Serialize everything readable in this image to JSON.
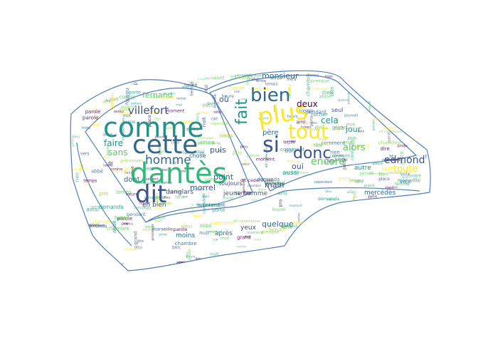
{
  "wordcloud": {
    "outline_color": "#4f7fb8",
    "palette": [
      "#440154",
      "#3b528b",
      "#21918c",
      "#5ec962",
      "#fde725",
      "#31688e",
      "#35b779",
      "#90d743"
    ],
    "words": [
      {
        "id": "dantes",
        "text": "dantès",
        "color": "#35b779"
      },
      {
        "id": "comme",
        "text": "comme",
        "color": "#21918c"
      },
      {
        "id": "cette",
        "text": "cette",
        "color": "#31688e"
      },
      {
        "id": "dit",
        "text": "dit",
        "color": "#3b528b"
      },
      {
        "id": "plus",
        "text": "plus",
        "color": "#fde725"
      },
      {
        "id": "tout",
        "text": "tout",
        "color": "#fde725"
      },
      {
        "id": "si",
        "text": "si",
        "color": "#3b528b"
      },
      {
        "id": "bien",
        "text": "bien",
        "color": "#31688e"
      },
      {
        "id": "fait",
        "text": "fait",
        "color": "#21918c"
      },
      {
        "id": "donc",
        "text": "donc",
        "color": "#3b528b"
      },
      {
        "id": "villefort",
        "text": "villefort",
        "color": "#3b528b"
      },
      {
        "id": "homme",
        "text": "homme",
        "color": "#31688e"
      },
      {
        "id": "faire",
        "text": "faire",
        "color": "#21918c"
      },
      {
        "id": "sans",
        "text": "sans",
        "color": "#5ec962"
      },
      {
        "id": "fernand",
        "text": "fernand",
        "color": "#5ec962"
      },
      {
        "id": "edmond",
        "text": "edmond",
        "color": "#3b528b"
      },
      {
        "id": "alors",
        "text": "alors",
        "color": "#5ec962"
      },
      {
        "id": "encore",
        "text": "encore",
        "color": "#5ec962"
      },
      {
        "id": "cela",
        "text": "cela",
        "color": "#21918c"
      },
      {
        "id": "deux",
        "text": "deux",
        "color": "#440154"
      },
      {
        "id": "monsieur",
        "text": "monsieur",
        "color": "#31688e"
      },
      {
        "id": "toute",
        "text": "toute",
        "color": "#fde725"
      },
      {
        "id": "jour",
        "text": "jour",
        "color": "#21918c"
      },
      {
        "id": "pere",
        "text": "père",
        "color": "#31688e"
      },
      {
        "id": "ou",
        "text": "où",
        "color": "#3b528b"
      },
      {
        "id": "puis",
        "text": "puis",
        "color": "#3b528b"
      },
      {
        "id": "point",
        "text": "point",
        "color": "#31688e"
      },
      {
        "id": "morrel",
        "text": "morrel",
        "color": "#3b528b"
      },
      {
        "id": "danglars",
        "text": "danglars",
        "color": "#3b528b"
      },
      {
        "id": "main",
        "text": "main",
        "color": "#3b528b"
      },
      {
        "id": "oui",
        "text": "oui",
        "color": "#3b528b"
      },
      {
        "id": "quelque",
        "text": "quelque",
        "color": "#31688e"
      },
      {
        "id": "mercedes",
        "text": "mercédès",
        "color": "#31688e"
      },
      {
        "id": "dont",
        "text": "dont",
        "color": "#31688e"
      },
      {
        "id": "eh_bien",
        "text": "eh bien",
        "color": "#3b528b"
      },
      {
        "id": "apres",
        "text": "après",
        "color": "#31688e"
      },
      {
        "id": "yeux",
        "text": "yeux",
        "color": "#3b528b"
      },
      {
        "id": "moins",
        "text": "moins",
        "color": "#31688e"
      },
      {
        "id": "jeune_homme",
        "text": "jeune homme",
        "color": "#31688e"
      },
      {
        "id": "toujours",
        "text": "toujours",
        "color": "#3b528b"
      },
      {
        "id": "aussi",
        "text": "aussi",
        "color": "#21918c"
      },
      {
        "id": "autre",
        "text": "autre",
        "color": "#21918c"
      },
      {
        "id": "chose",
        "text": "chose",
        "color": "#31688e"
      },
      {
        "id": "seul",
        "text": "seul",
        "color": "#3b528b"
      },
      {
        "id": "maintenant",
        "text": "maintenant",
        "color": "#31688e"
      },
      {
        "id": "chambre",
        "text": "chambre",
        "color": "#31688e"
      },
      {
        "id": "lequel",
        "text": "lequel",
        "color": "#31688e"
      },
      {
        "id": "parole",
        "text": "parole",
        "color": "#31688e"
      },
      {
        "id": "celui",
        "text": "celui",
        "color": "#21918c"
      },
      {
        "id": "tete",
        "text": "tête",
        "color": "#31688e"
      },
      {
        "id": "ami",
        "text": "ami",
        "color": "#31688e"
      },
      {
        "id": "faria",
        "text": "faria",
        "color": "#31688e"
      },
      {
        "id": "demanda",
        "text": "demanda",
        "color": "#31688e"
      },
      {
        "id": "cependant",
        "text": "cependant",
        "color": "#31688e"
      },
      {
        "id": "dieu",
        "text": "dieu",
        "color": "#31688e"
      },
      {
        "id": "pouvait",
        "text": "pouvait",
        "color": "#31688e"
      },
      {
        "id": "grand",
        "text": "grand",
        "color": "#3b528b"
      },
      {
        "id": "assez",
        "text": "assez",
        "color": "#31688e"
      },
      {
        "id": "place",
        "text": "place",
        "color": "#31688e"
      },
      {
        "id": "quand",
        "text": "quand",
        "color": "#31688e"
      },
      {
        "id": "jamais",
        "text": "jamais",
        "color": "#31688e"
      },
      {
        "id": "temps",
        "text": "temps",
        "color": "#31688e"
      },
      {
        "id": "porte",
        "text": "porte",
        "color": "#31688e"
      },
      {
        "id": "pris",
        "text": "pris",
        "color": "#31688e"
      },
      {
        "id": "vers",
        "text": "vers",
        "color": "#31688e"
      },
      {
        "id": "abbe",
        "text": "abbé",
        "color": "#31688e"
      },
      {
        "id": "pendant",
        "text": "pendant",
        "color": "#31688e"
      },
      {
        "id": "prisonnier",
        "text": "prisonnier",
        "color": "#31688e"
      },
      {
        "id": "rien",
        "text": "rien",
        "color": "#5ec962"
      },
      {
        "id": "peu",
        "text": "peu",
        "color": "#3b528b"
      },
      {
        "id": "trois",
        "text": "trois",
        "color": "#21918c"
      },
      {
        "id": "ainsi",
        "text": "ainsi",
        "color": "#21918c"
      },
      {
        "id": "contre",
        "text": "contre",
        "color": "#31688e"
      },
      {
        "id": "caderousse",
        "text": "dit caderousse",
        "color": "#31688e"
      },
      {
        "id": "jusqu",
        "text": "jusqu",
        "color": "#31688e"
      },
      {
        "id": "presque",
        "text": "presque",
        "color": "#31688e"
      },
      {
        "id": "femme",
        "text": "femme",
        "color": "#31688e"
      },
      {
        "id": "rocher",
        "text": "rocher",
        "color": "#31688e"
      },
      {
        "id": "marseille",
        "text": "marseille",
        "color": "#31688e"
      },
      {
        "id": "fit",
        "text": "fit",
        "color": "#31688e"
      },
      {
        "id": "voix",
        "text": "voix",
        "color": "#31688e"
      },
      {
        "id": "heure",
        "text": "heure",
        "color": "#31688e"
      },
      {
        "id": "comment",
        "text": "comment",
        "color": "#31688e"
      },
      {
        "id": "continua",
        "text": "continua",
        "color": "#31688e"
      },
      {
        "id": "nuit",
        "text": "nuit",
        "color": "#31688e"
      },
      {
        "id": "moment",
        "text": "moment",
        "color": "#31688e"
      },
      {
        "id": "lettre",
        "text": "lettre",
        "color": "#31688e"
      },
      {
        "id": "mot",
        "text": "mot",
        "color": "#31688e"
      },
      {
        "id": "car",
        "text": "car",
        "color": "#31688e"
      },
      {
        "id": "bon",
        "text": "bon",
        "color": "#31688e"
      },
      {
        "id": "dire",
        "text": "dire",
        "color": "#31688e"
      }
    ]
  }
}
